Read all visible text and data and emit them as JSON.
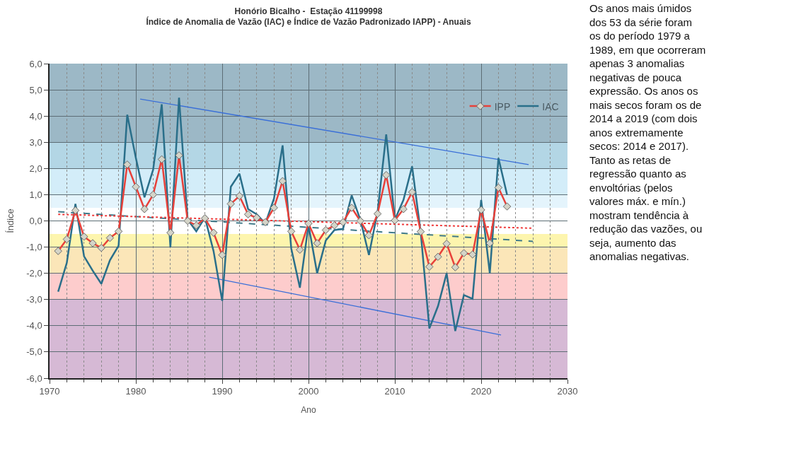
{
  "chart_data": {
    "type": "line",
    "title": "Honório Bicalho -  Estação 41199998",
    "subtitle": "Índice de Anomalia de Vazão (IAC) e Índice de Vazão Padronizado IAPP) - Anuais",
    "xlabel": "Ano",
    "ylabel": "Índice",
    "x": [
      1971,
      1972,
      1973,
      1974,
      1975,
      1976,
      1977,
      1978,
      1979,
      1980,
      1981,
      1982,
      1983,
      1984,
      1985,
      1986,
      1987,
      1988,
      1989,
      1990,
      1991,
      1992,
      1993,
      1994,
      1995,
      1996,
      1997,
      1998,
      1999,
      2000,
      2001,
      2002,
      2003,
      2004,
      2005,
      2006,
      2007,
      2008,
      2009,
      2010,
      2011,
      2012,
      2013,
      2014,
      2015,
      2016,
      2017,
      2018,
      2019,
      2020,
      2021,
      2022,
      2023
    ],
    "series": [
      {
        "name": "IPP",
        "color": "#e8413a",
        "marker": "diamond",
        "line_style": "solid",
        "values": [
          -1.15,
          -0.7,
          0.4,
          -0.6,
          -0.85,
          -1.03,
          -0.65,
          -0.4,
          2.15,
          1.3,
          0.45,
          1.0,
          2.35,
          -0.45,
          2.5,
          0.0,
          -0.17,
          0.1,
          -0.45,
          -1.3,
          0.65,
          0.95,
          0.25,
          0.12,
          -0.05,
          0.5,
          1.52,
          -0.4,
          -1.1,
          -0.1,
          -0.85,
          -0.35,
          -0.17,
          -0.05,
          0.5,
          0.0,
          -0.55,
          0.27,
          1.75,
          0.02,
          0.45,
          1.1,
          -0.41,
          -1.75,
          -1.37,
          -0.87,
          -1.77,
          -1.23,
          -1.28,
          0.42,
          -0.85,
          1.27,
          0.55
        ]
      },
      {
        "name": "IAC",
        "color": "#2a6f8a",
        "marker": "none",
        "line_style": "solid",
        "values": [
          -2.7,
          -1.6,
          0.65,
          -1.35,
          -1.9,
          -2.4,
          -1.5,
          -0.95,
          4.05,
          2.4,
          0.9,
          1.95,
          4.45,
          -1.0,
          4.7,
          0.05,
          -0.4,
          0.13,
          -1.15,
          -3.05,
          1.3,
          1.8,
          0.45,
          0.25,
          -0.1,
          0.85,
          2.88,
          -1.05,
          -2.55,
          -0.15,
          -2.0,
          -0.75,
          -0.35,
          -0.3,
          0.97,
          0.05,
          -1.3,
          0.35,
          3.3,
          0.05,
          0.8,
          2.08,
          -0.45,
          -4.1,
          -3.25,
          -2.0,
          -4.2,
          -2.83,
          -2.97,
          0.8,
          -2.0,
          2.4,
          1.0
        ]
      },
      {
        "x": [
          1971,
          2026
        ],
        "color": "#ef3b3b",
        "marker": "none",
        "line_style": "dotted",
        "values": [
          0.25,
          -0.28
        ]
      },
      {
        "x": [
          1971,
          2026
        ],
        "color": "#3f7a8a",
        "marker": "none",
        "line_style": "dashed",
        "values": [
          0.35,
          -0.78
        ]
      },
      {
        "x": [
          1980.5,
          2025.5
        ],
        "color": "#3a6fd8",
        "marker": "none",
        "line_style": "solid",
        "values": [
          4.65,
          2.15
        ]
      },
      {
        "x": [
          1988.5,
          2022.3
        ],
        "color": "#3a6fd8",
        "marker": "none",
        "line_style": "solid",
        "values": [
          -2.15,
          -4.35
        ]
      }
    ],
    "xlim": [
      1970,
      2030
    ],
    "xticks": [
      1970,
      1980,
      1990,
      2000,
      2010,
      2020,
      2030
    ],
    "ylim": [
      -6,
      6
    ],
    "yticks": [
      {
        "value": -6,
        "label": "-6,0"
      },
      {
        "value": -5,
        "label": "-5,0"
      },
      {
        "value": -4,
        "label": "-4,0"
      },
      {
        "value": -3,
        "label": "-3,0"
      },
      {
        "value": -2,
        "label": "-2,0"
      },
      {
        "value": -1,
        "label": "-1,0"
      },
      {
        "value": 0,
        "label": "0,0"
      },
      {
        "value": 1,
        "label": "1,0"
      },
      {
        "value": 2,
        "label": "2,0"
      },
      {
        "value": 3,
        "label": "3,0"
      },
      {
        "value": 4,
        "label": "4,0"
      },
      {
        "value": 5,
        "label": "5,0"
      },
      {
        "value": 6,
        "label": "6,0"
      }
    ],
    "bands": [
      {
        "axis": "y",
        "from": 3,
        "to": 6,
        "color": "#9cb8c6"
      },
      {
        "axis": "y",
        "from": 2,
        "to": 3,
        "color": "#b3d6e5"
      },
      {
        "axis": "y",
        "from": 1,
        "to": 2,
        "color": "#d3edf9"
      },
      {
        "axis": "y",
        "from": 0.5,
        "to": 1,
        "color": "#e4f4fc"
      },
      {
        "axis": "y",
        "from": -1,
        "to": -0.5,
        "color": "#fdf5ae"
      },
      {
        "axis": "y",
        "from": -2,
        "to": -1,
        "color": "#fbe6b8"
      },
      {
        "axis": "y",
        "from": -3,
        "to": -2,
        "color": "#fdcccc"
      },
      {
        "axis": "y",
        "from": -6,
        "to": -3,
        "color": "#d6b9d5"
      }
    ],
    "grid": true,
    "legend": "top right",
    "annotations": [
      "Os anos mais úmidos dos 53 da série foram os do período 1979 a 1989, em que ocorreram apenas 3 anomalias negativas de pouca expressão. Os anos os mais secos foram os de 2014 a 2019 (com dois anos extremamente secos: 2014 e 2017). Tanto as retas de regressão quanto as envoltórias (pelos valores máx. e mín.) mostram tendência à redução das vazões, ou seja, aumento das anomalias negativas."
    ]
  }
}
